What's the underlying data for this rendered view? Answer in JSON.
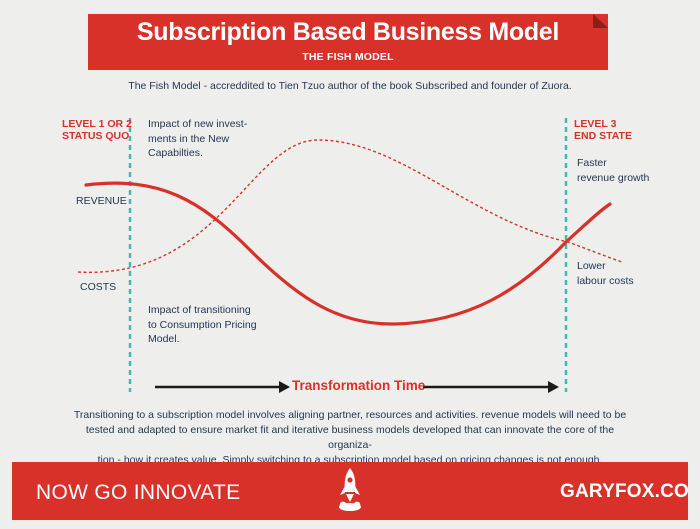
{
  "header": {
    "title": "Subscription Based Business Model",
    "subtitle": "THE FISH MODEL",
    "attribution": "The Fish Model - accreddited to Tien Tzuo author of the book Subscribed and founder of Zuora."
  },
  "levels": {
    "left_line1": "LEVEL 1 OR 2",
    "left_line2": "STATUS QUO",
    "right_line1": "LEVEL 3",
    "right_line2": "END STATE"
  },
  "notes": {
    "investments": [
      "Impact of new invest-",
      "ments in the New",
      "Capabilties."
    ],
    "transition": [
      "Impact of transitioning",
      "to Consumption Pricing",
      "Model."
    ],
    "revenue_growth": [
      "Faster",
      "revenue growth"
    ],
    "labour_costs": [
      "Lower",
      "labour costs"
    ]
  },
  "axis": {
    "revenue": "REVENUE",
    "costs": "COSTS",
    "transformation": "Transformation Time"
  },
  "curves": {
    "revenue_color": "#d8312a",
    "costs_color": "#d8312a",
    "divider_color": "#3fb6b2"
  },
  "body": {
    "lines": [
      "Transitioning to a subscription model involves aligning partner, resources and activities. revenue models will need to be",
      "tested and adapted to ensure market fit and iterative business models developed that can innovate the core of the organiza-",
      "tion - how it creates value. Simply switching to a subscription model based on pricing changes is not enough."
    ]
  },
  "footer": {
    "left": "NOW GO INNOVATE",
    "right": "GARYFOX.CO",
    "logo_icon": "rocket-icon"
  }
}
